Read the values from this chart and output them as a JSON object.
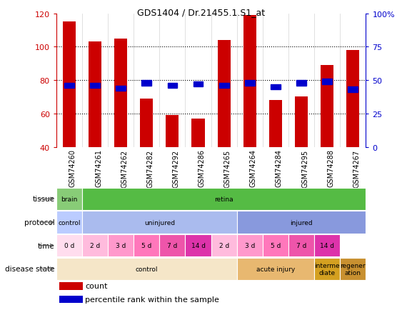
{
  "title": "GDS1404 / Dr.21455.1.S1_at",
  "samples": [
    "GSM74260",
    "GSM74261",
    "GSM74262",
    "GSM74282",
    "GSM74292",
    "GSM74286",
    "GSM74265",
    "GSM74264",
    "GSM74284",
    "GSM74295",
    "GSM74288",
    "GSM74267"
  ],
  "bar_values": [
    115,
    103,
    105,
    69,
    59,
    57,
    104,
    119,
    68,
    70,
    89,
    98
  ],
  "pct_values": [
    46,
    46,
    44,
    48,
    46,
    47,
    46,
    48,
    45,
    48,
    49,
    43
  ],
  "ylim_left": [
    40,
    120
  ],
  "ylim_right": [
    0,
    100
  ],
  "bar_color": "#cc0000",
  "pct_color": "#0000cc",
  "plot_bg": "#ffffff",
  "xtick_bg": "#d8d8d8",
  "tissue_row": {
    "label": "tissue",
    "segments": [
      {
        "text": "brain",
        "span": [
          0,
          1
        ],
        "color": "#88cc77"
      },
      {
        "text": "retina",
        "span": [
          1,
          12
        ],
        "color": "#55bb44"
      }
    ]
  },
  "protocol_row": {
    "label": "protocol",
    "segments": [
      {
        "text": "control",
        "span": [
          0,
          1
        ],
        "color": "#bbccff"
      },
      {
        "text": "uninjured",
        "span": [
          1,
          7
        ],
        "color": "#aabbee"
      },
      {
        "text": "injured",
        "span": [
          7,
          12
        ],
        "color": "#8899dd"
      }
    ]
  },
  "time_row": {
    "label": "time",
    "segments": [
      {
        "text": "0 d",
        "span": [
          0,
          1
        ],
        "color": "#ffddee"
      },
      {
        "text": "2 d",
        "span": [
          1,
          2
        ],
        "color": "#ffbbdd"
      },
      {
        "text": "3 d",
        "span": [
          2,
          3
        ],
        "color": "#ff99cc"
      },
      {
        "text": "5 d",
        "span": [
          3,
          4
        ],
        "color": "#ff77bb"
      },
      {
        "text": "7 d",
        "span": [
          4,
          5
        ],
        "color": "#ee55aa"
      },
      {
        "text": "14 d",
        "span": [
          5,
          6
        ],
        "color": "#dd33aa"
      },
      {
        "text": "2 d",
        "span": [
          6,
          7
        ],
        "color": "#ffbbdd"
      },
      {
        "text": "3 d",
        "span": [
          7,
          8
        ],
        "color": "#ff99cc"
      },
      {
        "text": "5 d",
        "span": [
          8,
          9
        ],
        "color": "#ff77bb"
      },
      {
        "text": "7 d",
        "span": [
          9,
          10
        ],
        "color": "#ee55aa"
      },
      {
        "text": "14 d",
        "span": [
          10,
          11
        ],
        "color": "#dd33aa"
      }
    ]
  },
  "disease_row": {
    "label": "disease state",
    "segments": [
      {
        "text": "control",
        "span": [
          0,
          7
        ],
        "color": "#f5e6c8"
      },
      {
        "text": "acute injury",
        "span": [
          7,
          10
        ],
        "color": "#e8b870"
      },
      {
        "text": "interme\ndiate",
        "span": [
          10,
          11
        ],
        "color": "#d4a020"
      },
      {
        "text": "regener\nation",
        "span": [
          11,
          12
        ],
        "color": "#c89030"
      }
    ]
  },
  "legend_count_label": "count",
  "legend_pct_label": "percentile rank within the sample",
  "left_yticks": [
    40,
    60,
    80,
    100,
    120
  ],
  "right_yticks": [
    0,
    25,
    50,
    75,
    100
  ],
  "right_yticklabels": [
    "0",
    "25",
    "50",
    "75",
    "100%"
  ]
}
